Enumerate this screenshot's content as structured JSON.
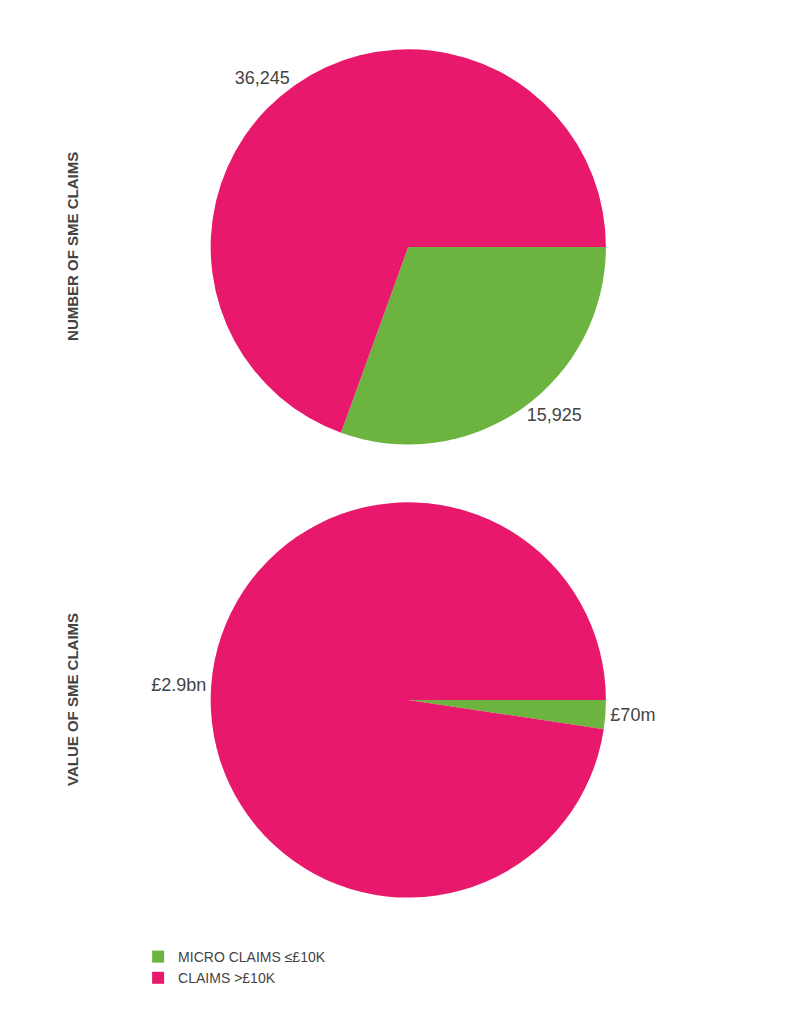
{
  "chart_data": [
    {
      "type": "pie",
      "title": "NUMBER OF SME CLAIMS",
      "categories": [
        "MICRO CLAIMS ≤£10K",
        "CLAIMS >£10K"
      ],
      "values": [
        15925,
        36245
      ],
      "value_labels": [
        "15,925",
        "36,245"
      ],
      "colors": [
        "#6db33f",
        "#e8186d"
      ],
      "data_labels": true,
      "legend": "bottom"
    },
    {
      "type": "pie",
      "title": "VALUE OF SME CLAIMS",
      "categories": [
        "MICRO CLAIMS ≤£10K",
        "CLAIMS >£10K"
      ],
      "values": [
        70,
        2900
      ],
      "value_labels": [
        "£70m",
        "£2.9bn"
      ],
      "colors": [
        "#6db33f",
        "#e8186d"
      ],
      "data_labels": true,
      "legend": "bottom"
    }
  ]
}
